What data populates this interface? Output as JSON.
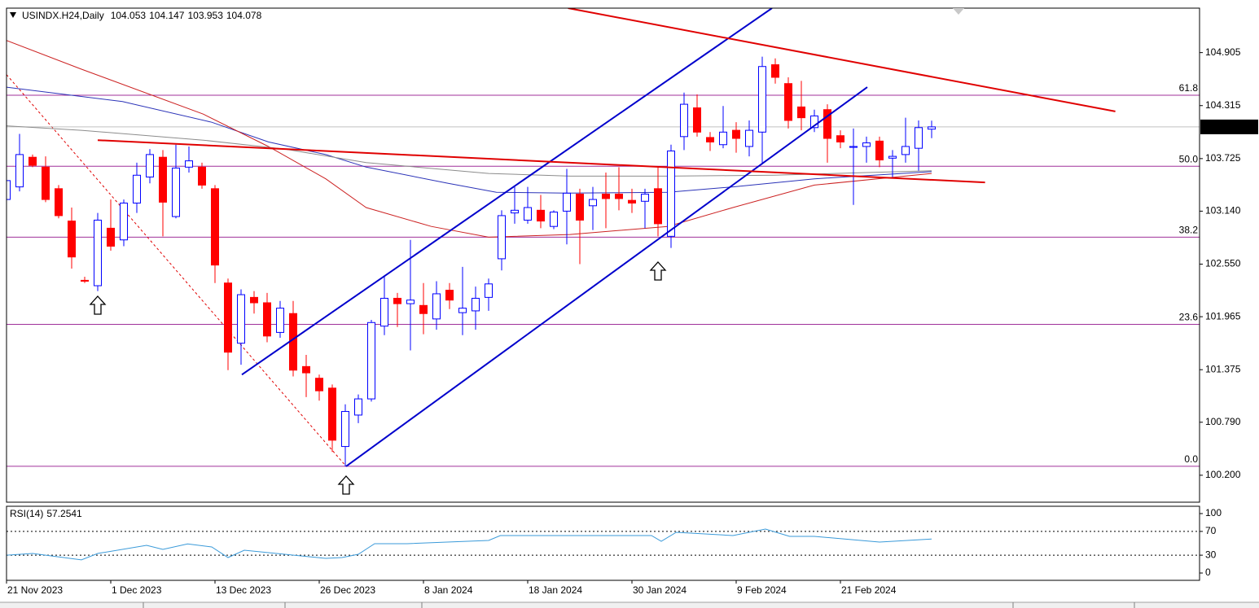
{
  "chart_data": {
    "type": "candlestick",
    "symbol": "USINDX.H24,Daily",
    "categories": [
      "21 Nov 2023",
      null,
      null,
      null,
      null,
      null,
      null,
      null,
      "1 Dec 2023",
      null,
      null,
      null,
      null,
      null,
      null,
      null,
      "13 Dec 2023",
      null,
      null,
      null,
      null,
      null,
      null,
      null,
      "26 Dec 2023",
      null,
      null,
      null,
      null,
      null,
      null,
      null,
      "8 Jan 2024",
      null,
      null,
      null,
      null,
      null,
      null,
      null,
      "18 Jan 2024",
      null,
      null,
      null,
      null,
      null,
      null,
      null,
      "30 Jan 2024",
      null,
      null,
      null,
      null,
      null,
      null,
      null,
      "9 Feb 2024",
      null,
      null,
      null,
      null,
      null,
      null,
      null,
      "21 Feb 2024",
      null,
      null,
      null,
      null,
      null,
      null,
      null
    ],
    "open": [
      103.27,
      103.41,
      103.74,
      103.63,
      103.39,
      103.03,
      102.37,
      102.31,
      102.95,
      102.82,
      103.23,
      103.52,
      103.74,
      103.08,
      103.63,
      103.63,
      103.39,
      102.34,
      101.67,
      102.18,
      102.12,
      101.79,
      102.0,
      101.41,
      101.28,
      101.17,
      100.52,
      100.87,
      101.05,
      101.86,
      102.17,
      102.11,
      102.09,
      101.94,
      102.26,
      102.01,
      102.03,
      102.18,
      102.61,
      103.12,
      103.04,
      103.15,
      102.97,
      103.14,
      103.33,
      103.2,
      103.33,
      103.33,
      103.26,
      103.25,
      103.39,
      102.86,
      103.97,
      104.29,
      103.96,
      103.88,
      104.04,
      103.86,
      104.02,
      104.77,
      104.56,
      104.3,
      104.07,
      104.27,
      103.98,
      103.85,
      103.86,
      103.92,
      103.73,
      103.77,
      103.84,
      104.053
    ],
    "high": [
      103.68,
      104.0,
      103.77,
      103.75,
      103.43,
      103.18,
      102.41,
      103.12,
      103.27,
      103.27,
      103.68,
      103.83,
      103.82,
      103.88,
      103.86,
      103.68,
      103.43,
      102.39,
      102.27,
      102.25,
      102.23,
      102.14,
      102.14,
      101.54,
      101.32,
      101.21,
      100.99,
      101.1,
      101.93,
      102.41,
      102.23,
      102.82,
      102.34,
      102.36,
      102.34,
      102.52,
      102.3,
      102.39,
      103.15,
      103.41,
      103.41,
      103.32,
      103.15,
      103.61,
      103.39,
      103.41,
      103.57,
      103.63,
      103.39,
      103.39,
      103.63,
      103.88,
      104.46,
      104.44,
      104.02,
      104.31,
      104.13,
      104.15,
      104.86,
      104.84,
      104.63,
      104.59,
      104.27,
      104.33,
      104.04,
      104.06,
      103.97,
      103.97,
      103.82,
      104.18,
      104.15,
      104.147
    ],
    "low": [
      103.06,
      103.36,
      103.63,
      103.24,
      103.06,
      102.5,
      102.34,
      102.25,
      102.7,
      102.75,
      103.12,
      103.45,
      102.86,
      103.06,
      103.57,
      103.39,
      102.34,
      101.37,
      101.43,
      102.0,
      101.68,
      101.73,
      101.3,
      101.07,
      101.03,
      100.46,
      100.3,
      100.78,
      101.02,
      101.76,
      101.85,
      101.59,
      101.77,
      101.82,
      102.05,
      101.76,
      101.82,
      102.03,
      102.48,
      103.0,
      103.0,
      102.95,
      102.94,
      102.77,
      102.55,
      102.93,
      102.95,
      103.15,
      103.12,
      102.95,
      102.86,
      102.73,
      103.82,
      103.97,
      103.81,
      103.84,
      103.79,
      103.75,
      103.68,
      104.56,
      104.06,
      104.04,
      104.02,
      103.68,
      103.84,
      103.21,
      103.68,
      103.63,
      103.52,
      103.68,
      103.59,
      103.953
    ],
    "close": [
      103.48,
      103.77,
      103.65,
      103.27,
      103.09,
      102.63,
      102.36,
      103.04,
      102.75,
      103.23,
      103.54,
      103.77,
      103.24,
      103.62,
      103.7,
      103.43,
      102.54,
      101.57,
      102.21,
      102.12,
      101.75,
      102.06,
      101.37,
      101.34,
      101.14,
      100.59,
      100.91,
      101.05,
      101.9,
      102.17,
      102.11,
      102.15,
      102.0,
      102.22,
      102.15,
      102.06,
      102.17,
      102.33,
      103.09,
      103.15,
      103.18,
      103.03,
      103.13,
      103.34,
      103.04,
      103.27,
      103.28,
      103.28,
      103.23,
      103.33,
      103.0,
      103.81,
      104.33,
      104.02,
      103.91,
      104.02,
      103.95,
      104.04,
      104.75,
      104.63,
      104.15,
      104.18,
      104.2,
      103.95,
      103.91,
      103.86,
      103.9,
      103.71,
      103.75,
      103.86,
      104.07,
      104.078
    ],
    "up_color": "#0000ff",
    "down_color": "#ff0000",
    "price_line_color": "#c0c0c0",
    "ylim": [
      99.9,
      105.4
    ],
    "yticks": [
      104.905,
      104.315,
      103.725,
      {
        "value": 103.14,
        "label": "103.140"
      },
      {
        "value": 102.55,
        "label": "102.550"
      },
      101.965,
      101.375,
      {
        "value": 100.79,
        "label": "100.790"
      },
      {
        "value": 100.2,
        "label": "100.200"
      }
    ],
    "moving_averages": [
      {
        "color": "#2b33b8",
        "x": [
          0,
          8.9,
          15.75,
          20.1,
          24.5,
          27.6,
          33.9,
          37.6,
          43,
          50.75,
          55.75,
          62,
          71
        ],
        "values": [
          104.52,
          104.36,
          104.13,
          103.91,
          103.77,
          103.63,
          103.45,
          103.35,
          103.34,
          103.35,
          103.41,
          103.5,
          103.58
        ]
      },
      {
        "color": "#cc2222",
        "x": [
          0,
          5.75,
          15.1,
          20.1,
          24.5,
          27.6,
          32.6,
          37,
          43.25,
          50.75,
          55.75,
          62,
          71
        ],
        "values": [
          105.04,
          104.72,
          104.22,
          103.86,
          103.5,
          103.18,
          102.97,
          102.85,
          102.88,
          102.97,
          103.18,
          103.43,
          103.56
        ]
      },
      {
        "color": "#8c8c8c",
        "x": [
          0,
          5.75,
          15.1,
          21.4,
          27.6,
          37,
          43.25,
          50.75,
          58.9,
          71
        ],
        "values": [
          104.09,
          104.04,
          103.93,
          103.83,
          103.68,
          103.56,
          103.53,
          103.53,
          103.54,
          103.59
        ]
      }
    ],
    "trendlines": [
      {
        "color": "#0000cc",
        "x": [
          18.06,
          58.75
        ],
        "values": [
          101.32,
          105.4
        ]
      },
      {
        "color": "#0000cc",
        "x": [
          26.06,
          66.06
        ],
        "values": [
          100.3,
          104.52
        ]
      },
      {
        "color": "#e00000",
        "x": [
          43.1,
          85.1
        ],
        "values": [
          105.4,
          104.25
        ]
      },
      {
        "color": "#e00000",
        "x": [
          7,
          75.1
        ],
        "values": [
          103.93,
          103.46
        ]
      }
    ],
    "fib": {
      "color": "#a0309a",
      "line_color": "#e00000",
      "line": {
        "x": [
          0,
          26.06
        ],
        "values": [
          104.66,
          100.3
        ]
      },
      "levels": [
        {
          "value": 104.43,
          "label": "61.8"
        },
        {
          "value": 103.64,
          "label": "50.0"
        },
        {
          "value": 102.85,
          "label": "38.2"
        },
        {
          "value": 101.88,
          "label": "23.6"
        },
        {
          "value": 100.3,
          "label": "0.0"
        }
      ]
    },
    "rsi": {
      "label": "RSI(14)",
      "color": "#3a9ad9",
      "x": [
        0,
        2,
        5.75,
        7,
        10.75,
        12,
        13.9,
        15.75,
        17,
        18.25,
        24.5,
        25.75,
        27,
        28.25,
        30.75,
        37,
        37.9,
        43.25,
        49.5,
        50.25,
        51.4,
        55.75,
        58.25,
        60.1,
        62,
        67,
        71
      ],
      "values": [
        30,
        32.9,
        22,
        32.9,
        46.6,
        39.7,
        49,
        43.8,
        26,
        38.4,
        24.7,
        26,
        31.5,
        49.3,
        49.3,
        54.8,
        63,
        63,
        63,
        53.4,
        68.5,
        63,
        74,
        61.6,
        61.6,
        52,
        57.2541
      ],
      "ylim": [
        -12.3,
        112.3
      ],
      "yticks": [
        100,
        70,
        30,
        0
      ],
      "levels": [
        70,
        30
      ]
    }
  }
}
